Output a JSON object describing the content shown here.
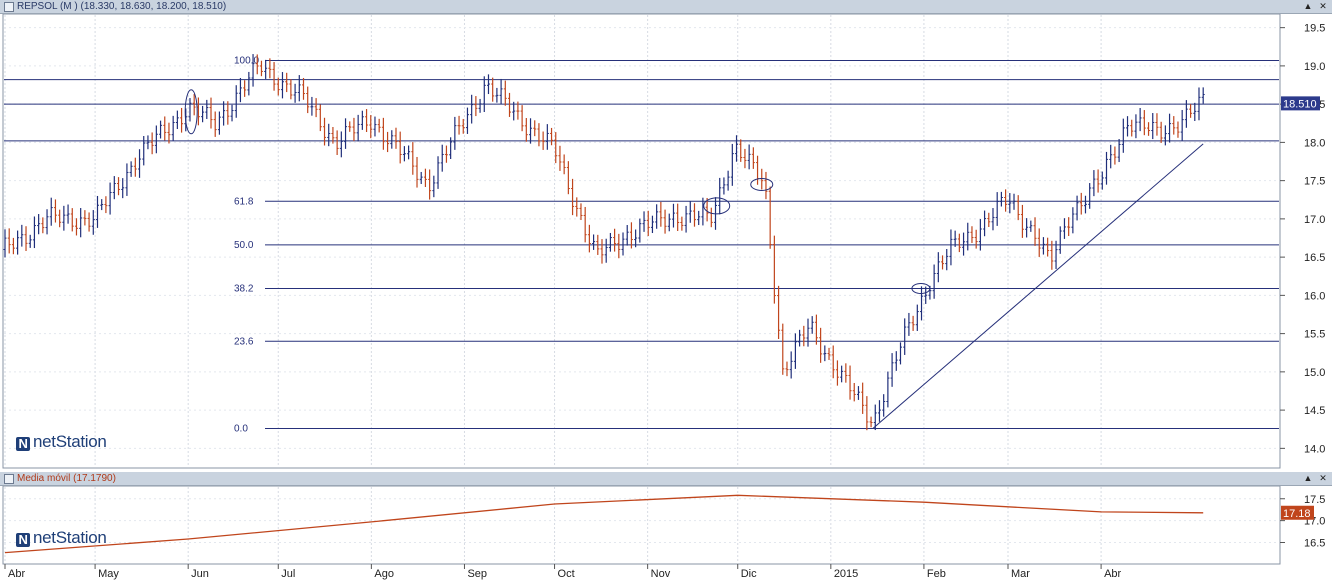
{
  "main_panel": {
    "title": "REPSOL (M ) (18.330, 18.630, 18.200, 18.510)",
    "last_price": "18.510"
  },
  "sub_panel": {
    "title": "Media móvil (17.1790)",
    "last_value": "17.18"
  },
  "logo": {
    "mark": "N",
    "text": "netStation"
  },
  "colors": {
    "up": "#1f2e7a",
    "down": "#c0451c",
    "grid": "#26307a",
    "ma": "#c0451c",
    "badge_main": "#2c3a8c",
    "badge_sub": "#c0451c"
  },
  "chart_data": [
    {
      "type": "bar",
      "title": "REPSOL (M ) (18.330, 18.630, 18.200, 18.510)",
      "x_months": [
        "Abr",
        "May",
        "Jun",
        "Jul",
        "Ago",
        "Sep",
        "Oct",
        "Nov",
        "Dic",
        "2015",
        "Feb",
        "Mar",
        "Abr"
      ],
      "y_ticks": [
        "19.5",
        "19.0",
        "18.5",
        "18.0",
        "17.5",
        "17.0",
        "16.5",
        "16.0",
        "15.5",
        "15.0",
        "14.5",
        "14.0"
      ],
      "ylim": [
        13.9,
        19.6
      ],
      "fibonacci_levels": [
        {
          "label": "100.0",
          "value": 19.07
        },
        {
          "label": "61.8",
          "value": 17.23
        },
        {
          "label": "50.0",
          "value": 16.66
        },
        {
          "label": "38.2",
          "value": 16.09
        },
        {
          "label": "23.6",
          "value": 15.4
        },
        {
          "label": "0.0",
          "value": 14.26
        }
      ],
      "horizontal_lines": [
        18.82,
        18.5,
        18.02
      ],
      "trendline": {
        "from": {
          "date": "2015-01-15",
          "value": 14.26
        },
        "to": {
          "date": "2015-05-05",
          "value": 17.98
        }
      },
      "keypoints": [
        {
          "date": "2014-04-01",
          "value": 16.6
        },
        {
          "date": "2014-04-15",
          "value": 17.0
        },
        {
          "date": "2014-05-01",
          "value": 17.0
        },
        {
          "date": "2014-05-15",
          "value": 17.8
        },
        {
          "date": "2014-06-01",
          "value": 18.45
        },
        {
          "date": "2014-06-10",
          "value": 18.25
        },
        {
          "date": "2014-06-25",
          "value": 19.0
        },
        {
          "date": "2014-07-10",
          "value": 18.55
        },
        {
          "date": "2014-07-20",
          "value": 18.0
        },
        {
          "date": "2014-08-01",
          "value": 18.3
        },
        {
          "date": "2014-08-20",
          "value": 17.45
        },
        {
          "date": "2014-09-01",
          "value": 18.3
        },
        {
          "date": "2014-09-08",
          "value": 18.75
        },
        {
          "date": "2014-09-20",
          "value": 18.3
        },
        {
          "date": "2014-10-01",
          "value": 17.9
        },
        {
          "date": "2014-10-15",
          "value": 16.5
        },
        {
          "date": "2014-10-25",
          "value": 16.8
        },
        {
          "date": "2014-11-10",
          "value": 17.05
        },
        {
          "date": "2014-11-22",
          "value": 17.0
        },
        {
          "date": "2014-11-30",
          "value": 17.95
        },
        {
          "date": "2014-12-10",
          "value": 17.45
        },
        {
          "date": "2014-12-16",
          "value": 15.0
        },
        {
          "date": "2014-12-25",
          "value": 15.6
        },
        {
          "date": "2015-01-05",
          "value": 14.9
        },
        {
          "date": "2015-01-15",
          "value": 14.35
        },
        {
          "date": "2015-01-25",
          "value": 15.4
        },
        {
          "date": "2015-02-03",
          "value": 16.2
        },
        {
          "date": "2015-02-10",
          "value": 16.6
        },
        {
          "date": "2015-02-20",
          "value": 16.9
        },
        {
          "date": "2015-03-01",
          "value": 17.25
        },
        {
          "date": "2015-03-10",
          "value": 16.8
        },
        {
          "date": "2015-03-15",
          "value": 16.4
        },
        {
          "date": "2015-03-22",
          "value": 17.1
        },
        {
          "date": "2015-04-01",
          "value": 17.5
        },
        {
          "date": "2015-04-10",
          "value": 18.3
        },
        {
          "date": "2015-04-20",
          "value": 18.1
        },
        {
          "date": "2015-05-05",
          "value": 18.51
        }
      ],
      "last": {
        "open": 18.33,
        "high": 18.63,
        "low": 18.2,
        "close": 18.51
      }
    },
    {
      "type": "line",
      "title": "Media móvil (17.1790)",
      "y_ticks": [
        "17.5",
        "17.0",
        "16.5"
      ],
      "ylim": [
        16.1,
        17.7
      ],
      "series": [
        {
          "name": "Media móvil",
          "points": [
            {
              "date": "2014-04-01",
              "value": 16.27
            },
            {
              "date": "2014-06-01",
              "value": 16.58
            },
            {
              "date": "2014-08-01",
              "value": 16.97
            },
            {
              "date": "2014-10-01",
              "value": 17.38
            },
            {
              "date": "2014-12-01",
              "value": 17.58
            },
            {
              "date": "2015-02-01",
              "value": 17.42
            },
            {
              "date": "2015-04-01",
              "value": 17.2
            },
            {
              "date": "2015-05-05",
              "value": 17.18
            }
          ]
        }
      ]
    }
  ]
}
